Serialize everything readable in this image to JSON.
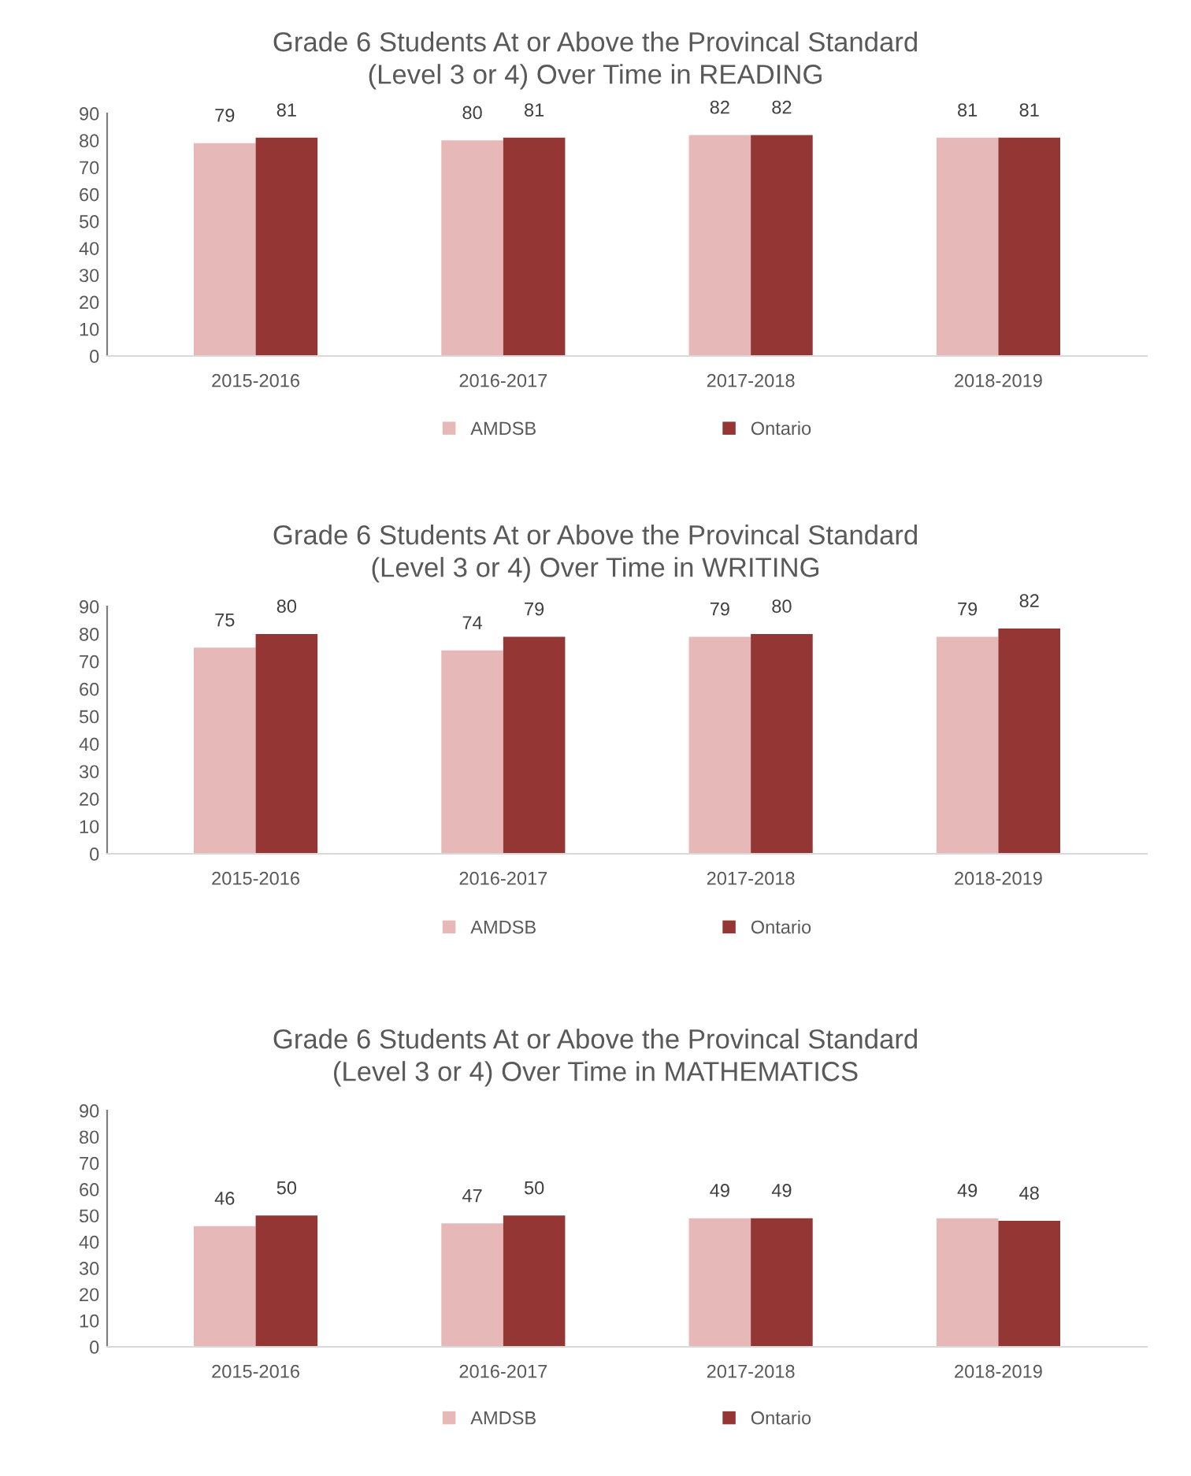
{
  "chart_data": [
    {
      "type": "bar",
      "title": "Grade 6 Students At or Above the Provincal Standard\n(Level 3 or 4) Over Time in READING",
      "categories": [
        "2015-2016",
        "2016-2017",
        "2017-2018",
        "2018-2019"
      ],
      "series": [
        {
          "name": "AMDSB",
          "color": "#e6b9b8",
          "values": [
            79,
            80,
            82,
            81
          ]
        },
        {
          "name": "Ontario",
          "color": "#943634",
          "values": [
            81,
            81,
            82,
            81
          ]
        }
      ],
      "ylim": [
        0,
        90
      ],
      "yticks": [
        0,
        10,
        20,
        30,
        40,
        50,
        60,
        70,
        80,
        90
      ],
      "data_labels": true,
      "grid": false,
      "legend": "bottom"
    },
    {
      "type": "bar",
      "title": "Grade 6 Students At or Above the Provincal Standard\n(Level 3 or 4) Over Time in WRITING",
      "categories": [
        "2015-2016",
        "2016-2017",
        "2017-2018",
        "2018-2019"
      ],
      "series": [
        {
          "name": "AMDSB",
          "color": "#e6b9b8",
          "values": [
            75,
            74,
            79,
            79
          ]
        },
        {
          "name": "Ontario",
          "color": "#943634",
          "values": [
            80,
            79,
            80,
            82
          ]
        }
      ],
      "ylim": [
        0,
        90
      ],
      "yticks": [
        0,
        10,
        20,
        30,
        40,
        50,
        60,
        70,
        80,
        90
      ],
      "data_labels": true,
      "grid": false,
      "legend": "bottom"
    },
    {
      "type": "bar",
      "title": "Grade 6 Students At or Above the Provincal Standard\n(Level 3 or 4) Over Time in MATHEMATICS",
      "categories": [
        "2015-2016",
        "2016-2017",
        "2017-2018",
        "2018-2019"
      ],
      "series": [
        {
          "name": "AMDSB",
          "color": "#e6b9b8",
          "values": [
            46,
            47,
            49,
            49
          ]
        },
        {
          "name": "Ontario",
          "color": "#943634",
          "values": [
            50,
            50,
            49,
            48
          ]
        }
      ],
      "ylim": [
        0,
        90
      ],
      "yticks": [
        0,
        10,
        20,
        30,
        40,
        50,
        60,
        70,
        80,
        90
      ],
      "data_labels": true,
      "grid": false,
      "legend": "bottom"
    }
  ]
}
